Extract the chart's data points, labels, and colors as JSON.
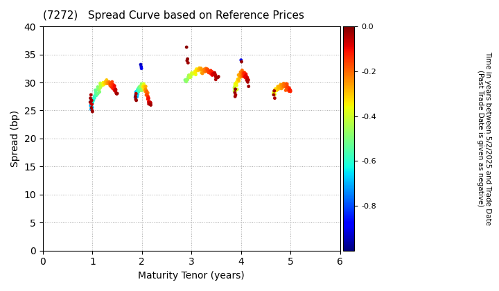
{
  "title": "(7272)   Spread Curve based on Reference Prices",
  "xlabel": "Maturity Tenor (years)",
  "ylabel": "Spread (bp)",
  "colorbar_label_line1": "Time in years between 5/2/2025 and Trade Date",
  "colorbar_label_line2": "(Past Trade Date is given as negative)",
  "xlim": [
    0,
    6
  ],
  "ylim": [
    0,
    40
  ],
  "xticks": [
    0,
    1,
    2,
    3,
    4,
    5,
    6
  ],
  "yticks": [
    0,
    5,
    10,
    15,
    20,
    25,
    30,
    35,
    40
  ],
  "colormap": "jet",
  "vmin": -1.0,
  "vmax": 0.0,
  "colorbar_ticks": [
    0.0,
    -0.2,
    -0.4,
    -0.6,
    -0.8
  ],
  "point_size": 12,
  "background_color": "#ffffff",
  "grid_color": "#aaaaaa",
  "grid_style": "dotted"
}
